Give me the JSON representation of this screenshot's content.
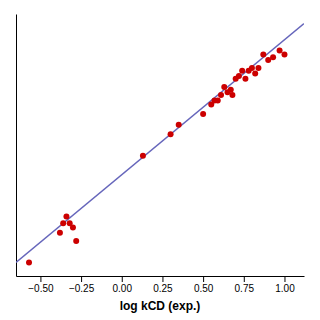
{
  "chart_data": {
    "type": "scatter",
    "xlabel": "log kCD (exp.)",
    "xlim": [
      -0.65,
      1.12
    ],
    "ylim": [
      -0.72,
      1.22
    ],
    "xticks": [
      {
        "value": -0.5,
        "label": "−0.50"
      },
      {
        "value": -0.25,
        "label": "−0.25"
      },
      {
        "value": 0.0,
        "label": "0.00"
      },
      {
        "value": 0.25,
        "label": "0.25"
      },
      {
        "value": 0.5,
        "label": "0.50"
      },
      {
        "value": 0.75,
        "label": "0.75"
      },
      {
        "value": 1.0,
        "label": "1.00"
      }
    ],
    "tick_labels": "x",
    "series": [
      {
        "type": "line",
        "color": "#6666bb",
        "x": [
          -0.65,
          1.12
        ],
        "values": [
          -0.62,
          1.15
        ]
      },
      {
        "type": "scatter",
        "color": "#cc0000",
        "x": [
          -0.57,
          -0.38,
          -0.36,
          -0.34,
          -0.32,
          -0.3,
          -0.28,
          0.13,
          0.3,
          0.35,
          0.5,
          0.55,
          0.57,
          0.59,
          0.61,
          0.63,
          0.65,
          0.67,
          0.68,
          0.7,
          0.72,
          0.74,
          0.76,
          0.78,
          0.8,
          0.82,
          0.84,
          0.87,
          0.9,
          0.93,
          0.97,
          1.0
        ],
        "values": [
          -0.62,
          -0.4,
          -0.33,
          -0.28,
          -0.33,
          -0.36,
          -0.46,
          0.17,
          0.33,
          0.4,
          0.48,
          0.55,
          0.58,
          0.58,
          0.62,
          0.68,
          0.64,
          0.66,
          0.62,
          0.74,
          0.76,
          0.8,
          0.74,
          0.8,
          0.82,
          0.78,
          0.82,
          0.92,
          0.88,
          0.9,
          0.95,
          0.92
        ]
      }
    ]
  }
}
